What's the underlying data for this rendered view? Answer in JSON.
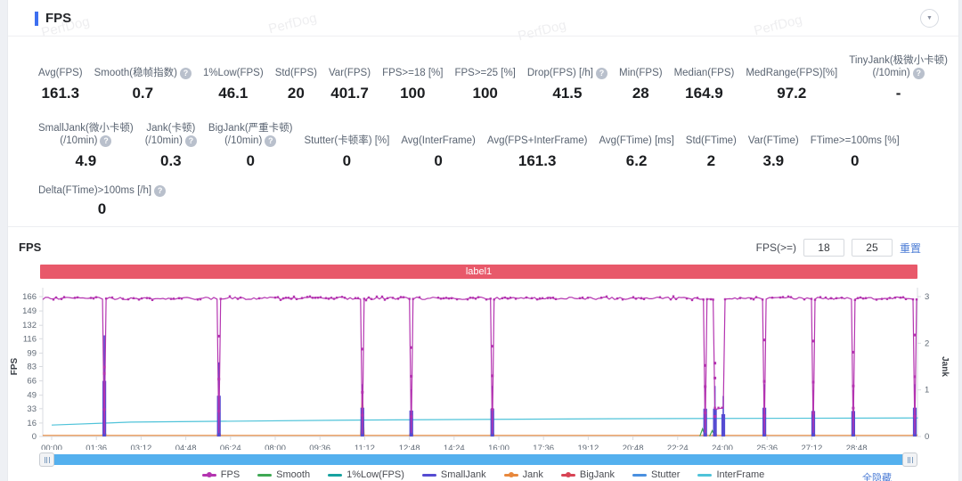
{
  "header": {
    "title": "FPS",
    "collapse_icon": "▼"
  },
  "watermark": {
    "text": "PerfDog"
  },
  "stats": {
    "rows": [
      {
        "items": [
          {
            "label": [
              "Avg(FPS)"
            ],
            "help": false,
            "value": "161.3"
          },
          {
            "label": [
              "Smooth(稳帧指数)"
            ],
            "help": true,
            "value": "0.7"
          },
          {
            "label": [
              "1%Low(FPS)"
            ],
            "help": false,
            "value": "46.1"
          },
          {
            "label": [
              "Std(FPS)"
            ],
            "help": false,
            "value": "20"
          },
          {
            "label": [
              "Var(FPS)"
            ],
            "help": false,
            "value": "401.7"
          },
          {
            "label": [
              "FPS>=18 [%]"
            ],
            "help": false,
            "value": "100"
          },
          {
            "label": [
              "FPS>=25 [%]"
            ],
            "help": false,
            "value": "100"
          },
          {
            "label": [
              "Drop(FPS) [/h]"
            ],
            "help": true,
            "value": "41.5"
          },
          {
            "label": [
              "Min(FPS)"
            ],
            "help": false,
            "value": "28"
          },
          {
            "label": [
              "Median(FPS)"
            ],
            "help": false,
            "value": "164.9"
          },
          {
            "label": [
              "MedRange(FPS)[%]"
            ],
            "help": false,
            "value": "97.2"
          },
          {
            "label": [
              "TinyJank(极微小卡顿)",
              "(/10min)"
            ],
            "help": true,
            "value": "-"
          }
        ]
      },
      {
        "items": [
          {
            "label": [
              "SmallJank(微小卡顿)",
              "(/10min)"
            ],
            "help": true,
            "value": "4.9"
          },
          {
            "label": [
              "Jank(卡顿)",
              "(/10min)"
            ],
            "help": true,
            "value": "0.3"
          },
          {
            "label": [
              "BigJank(严重卡顿)",
              "(/10min)"
            ],
            "help": true,
            "value": "0"
          },
          {
            "label": [
              "Stutter(卡顿率) [%]"
            ],
            "help": false,
            "value": "0"
          },
          {
            "label": [
              "Avg(InterFrame)"
            ],
            "help": false,
            "value": "0"
          },
          {
            "label": [
              "Avg(FPS+InterFrame)"
            ],
            "help": false,
            "value": "161.3"
          },
          {
            "label": [
              "Avg(FTime) [ms]"
            ],
            "help": false,
            "value": "6.2"
          },
          {
            "label": [
              "Std(FTime)"
            ],
            "help": false,
            "value": "2"
          },
          {
            "label": [
              "Var(FTime)"
            ],
            "help": false,
            "value": "3.9"
          },
          {
            "label": [
              "FTime>=100ms [%]"
            ],
            "help": false,
            "value": "0"
          }
        ]
      }
    ],
    "delta_row": {
      "label": "Delta(FTime)>100ms [/h]",
      "help": true,
      "value": "0"
    }
  },
  "chart_section": {
    "title": "FPS",
    "threshold_label": "FPS(>=)",
    "threshold_low": "18",
    "threshold_high": "25",
    "reset_label": "重置",
    "banner_label": "label1",
    "banner_color": "#e8596a",
    "hide_all_label": "全隐藏",
    "scrollbar_color": "#54b0ee"
  },
  "chart_data": {
    "type": "line",
    "title": "FPS",
    "ylabel_left": "FPS",
    "ylabel_right": "Jank",
    "y_left_max": 166,
    "y_right_max": 3,
    "y_left_ticks": [
      0,
      16,
      33,
      49,
      66,
      83,
      99,
      116,
      132,
      149,
      166
    ],
    "y_right_ticks": [
      0,
      1,
      2,
      3
    ],
    "x_ticks": [
      "00:00",
      "01:36",
      "03:12",
      "04:48",
      "06:24",
      "08:00",
      "09:36",
      "11:12",
      "12:48",
      "14:24",
      "16:00",
      "17:36",
      "19:12",
      "20:48",
      "22:24",
      "24:00",
      "25:36",
      "27:12",
      "28:48"
    ],
    "x_tick_interval_s": 96,
    "grid": false,
    "legend_position": "bottom",
    "series": [
      {
        "name": "FPS",
        "color": "#b434b0",
        "dot": true,
        "baseline_fps": 164,
        "noise_fps": 3
      },
      {
        "name": "Smooth",
        "color": "#3fa854",
        "dot": false,
        "stat_value": 0.7
      },
      {
        "name": "1%Low(FPS)",
        "color": "#17a2a0",
        "dot": false,
        "stat_value": 46.1
      },
      {
        "name": "SmallJank",
        "color": "#554bd2",
        "dot": false
      },
      {
        "name": "Jank",
        "color": "#e8883c",
        "dot": true,
        "baseline_fps": 1.3
      },
      {
        "name": "BigJank",
        "color": "#d84455",
        "dot": true,
        "baseline_fps": 0
      },
      {
        "name": "Stutter",
        "color": "#4a90e0",
        "dot": false,
        "baseline_fps": 0
      },
      {
        "name": "InterFrame",
        "color": "#4fc3d9",
        "dot": false,
        "points_t_fps": [
          [
            0,
            13.5
          ],
          [
            170,
            17
          ],
          [
            650,
            19.5
          ],
          [
            1200,
            21
          ],
          [
            1860,
            22
          ]
        ]
      }
    ],
    "dips": [
      {
        "t": 113,
        "fps_low": 3,
        "small_jank_fps": 120,
        "jank_fps": 10
      },
      {
        "t": 359,
        "fps_low": 4,
        "small_jank_fps": 88,
        "jank_fps": 8
      },
      {
        "t": 667,
        "fps_low": 3,
        "small_jank_fps": 62,
        "jank_fps": 55
      },
      {
        "t": 772,
        "fps_low": 4,
        "small_jank_fps": 56,
        "jank_fps": 8
      },
      {
        "t": 946,
        "fps_low": 3,
        "small_jank_fps": 60,
        "jank_fps": 8
      },
      {
        "t": 1403,
        "fps_low": 4,
        "small_jank_fps": 60,
        "jank_fps": 8,
        "smooth_fps": 9
      },
      {
        "t": 1424,
        "t2": 1442,
        "fps_low": 32,
        "small_jank_fps": 60,
        "jank_fps": 8,
        "smooth_fps": 7
      },
      {
        "t": 1530,
        "fps_low": 3,
        "small_jank_fps": 62,
        "jank_fps": 8
      },
      {
        "t": 1635,
        "fps_low": 4,
        "small_jank_fps": 55,
        "jank_fps": 8
      },
      {
        "t": 1721,
        "fps_low": 3,
        "small_jank_fps": 55,
        "jank_fps": 8
      },
      {
        "t": 1853,
        "fps_low": 3,
        "small_jank_fps": 62,
        "jank_fps": 8
      }
    ]
  }
}
